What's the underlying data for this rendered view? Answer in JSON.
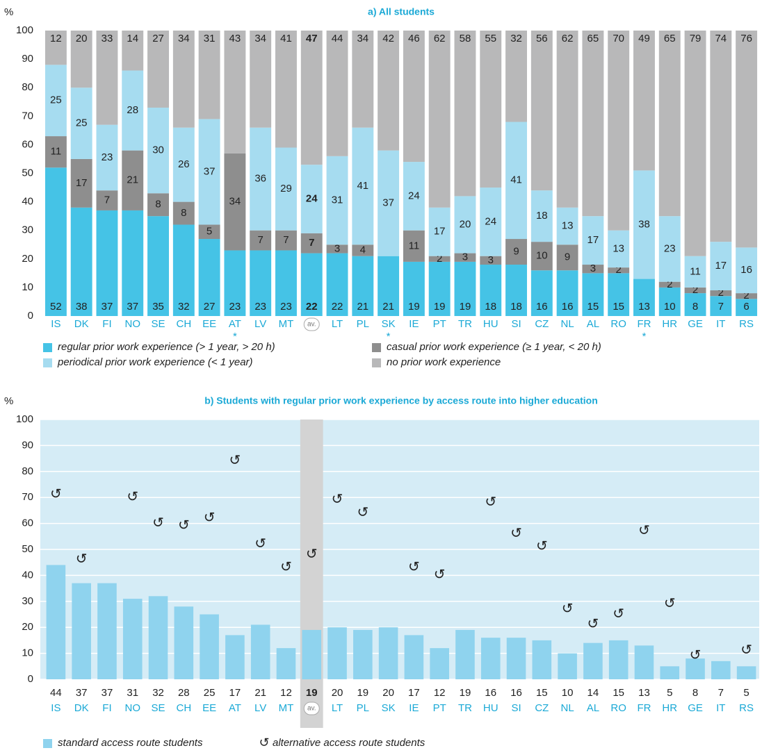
{
  "chart_data": [
    {
      "type": "stacked_bar",
      "title": "a) All students",
      "y_label": "%",
      "categories": [
        "IS",
        "DK",
        "FI",
        "NO",
        "SE",
        "CH",
        "EE",
        "AT",
        "LV",
        "MT",
        "av.",
        "LT",
        "PL",
        "SK",
        "IE",
        "PT",
        "TR",
        "HU",
        "SI",
        "CZ",
        "NL",
        "AL",
        "RO",
        "FR",
        "HR",
        "GE",
        "IT",
        "RS"
      ],
      "series": [
        {
          "name": "regular prior work experience (> 1 year, > 20 h)",
          "color": "#45c3e6",
          "values": [
            52,
            38,
            37,
            37,
            35,
            32,
            27,
            23,
            23,
            23,
            22,
            22,
            21,
            21,
            19,
            19,
            19,
            18,
            18,
            16,
            16,
            15,
            15,
            13,
            10,
            8,
            7,
            6
          ]
        },
        {
          "name": "casual prior work experience (≥ 1 year, < 20 h)",
          "color": "#8e8e8e",
          "values": [
            11,
            17,
            7,
            21,
            8,
            8,
            5,
            34,
            7,
            7,
            7,
            3,
            4,
            0,
            11,
            2,
            3,
            3,
            9,
            10,
            9,
            3,
            2,
            0,
            2,
            2,
            2,
            2
          ]
        },
        {
          "name": "periodical prior work experience (< 1 year)",
          "color": "#a6dcf0",
          "values": [
            25,
            25,
            23,
            28,
            30,
            26,
            37,
            0,
            36,
            29,
            24,
            31,
            41,
            37,
            24,
            17,
            20,
            24,
            41,
            18,
            13,
            17,
            13,
            38,
            23,
            11,
            17,
            16
          ]
        },
        {
          "name": "no prior work experience",
          "color": "#b8b8b9",
          "values": [
            12,
            20,
            33,
            14,
            27,
            34,
            31,
            43,
            34,
            41,
            47,
            44,
            34,
            42,
            46,
            62,
            58,
            55,
            32,
            56,
            62,
            65,
            70,
            49,
            65,
            79,
            74,
            76
          ]
        }
      ],
      "ylim": [
        0,
        100
      ],
      "yticks": [
        0,
        10,
        20,
        30,
        40,
        50,
        60,
        70,
        80,
        90,
        100
      ],
      "grid": false,
      "highlight_category": "av.",
      "annotations": [
        {
          "category": "AT",
          "text": "*"
        },
        {
          "category": "SK",
          "text": "*"
        },
        {
          "category": "FR",
          "text": "*"
        }
      ]
    },
    {
      "type": "bar_marker",
      "title": "b) Students with regular prior work experience by access route into higher education",
      "y_label": "%",
      "categories": [
        "IS",
        "DK",
        "FI",
        "NO",
        "SE",
        "CH",
        "EE",
        "AT",
        "LV",
        "MT",
        "av.",
        "LT",
        "PL",
        "SK",
        "IE",
        "PT",
        "TR",
        "HU",
        "SI",
        "CZ",
        "NL",
        "AL",
        "RO",
        "FR",
        "HR",
        "GE",
        "IT",
        "RS"
      ],
      "series": [
        {
          "name": "standard access route students",
          "color": "#8fd3ee",
          "values": [
            44,
            37,
            37,
            31,
            32,
            28,
            25,
            17,
            21,
            12,
            19,
            20,
            19,
            20,
            17,
            12,
            19,
            16,
            16,
            15,
            10,
            14,
            15,
            13,
            5,
            8,
            7,
            5
          ]
        },
        {
          "name": "alternative access route students",
          "color": "#222222",
          "marker": "↺",
          "values": [
            71,
            46,
            null,
            70,
            60,
            59,
            62,
            84,
            52,
            43,
            48,
            69,
            64,
            null,
            43,
            40,
            null,
            68,
            56,
            51,
            27,
            21,
            25,
            57,
            29,
            9,
            null,
            11
          ]
        }
      ],
      "ylim": [
        0,
        100
      ],
      "yticks": [
        0,
        10,
        20,
        30,
        40,
        50,
        60,
        70,
        80,
        90,
        100
      ],
      "grid": true,
      "highlight_category": "av."
    }
  ]
}
